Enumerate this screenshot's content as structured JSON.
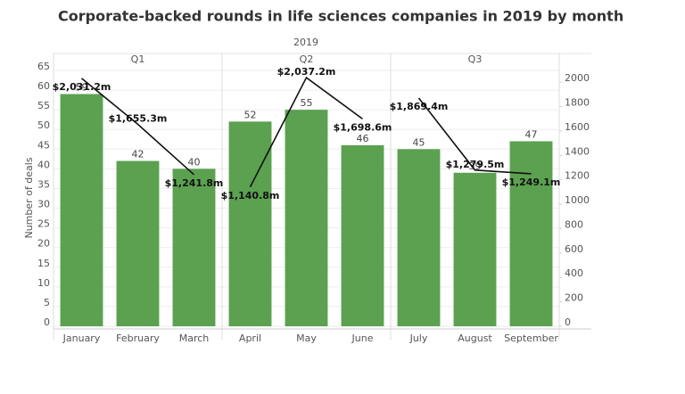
{
  "chart_data": {
    "type": "bar_line",
    "title": "Corporate-backed rounds in life sciences companies in 2019 by month",
    "x_group_title": "2019",
    "categories": [
      "January",
      "February",
      "March",
      "April",
      "May",
      "June",
      "July",
      "August",
      "September"
    ],
    "groups": [
      "Q1",
      "Q1",
      "Q1",
      "Q2",
      "Q2",
      "Q2",
      "Q3",
      "Q3",
      "Q3"
    ],
    "ylabel": "Number of deals",
    "ylim": [
      0,
      65
    ],
    "yticks": [
      0,
      5,
      10,
      15,
      20,
      25,
      30,
      35,
      40,
      45,
      50,
      55,
      60,
      65
    ],
    "y2lim": [
      0,
      2096
    ],
    "y2ticks": [
      0,
      200,
      400,
      600,
      800,
      1000,
      1200,
      1400,
      1600,
      1800,
      2000
    ],
    "grid": true,
    "series": [
      {
        "type": "bar",
        "color": "#5ba150",
        "values": [
          59,
          42,
          40,
          52,
          55,
          46,
          45,
          39,
          47
        ]
      },
      {
        "type": "line",
        "axis": "y2",
        "color": "#111111",
        "values": [
          2031.2,
          1655.3,
          1241.8,
          1140.8,
          2037.2,
          1698.6,
          1869.4,
          1279.5,
          1249.1
        ],
        "value_labels": [
          "$2,031.2m",
          "$1,655.3m",
          "$1,241.8m",
          "$1,140.8m",
          "$2,037.2m",
          "$1,698.6m",
          "$1,869.4m",
          "$1,279.5m",
          "$1,249.1m"
        ]
      }
    ]
  }
}
